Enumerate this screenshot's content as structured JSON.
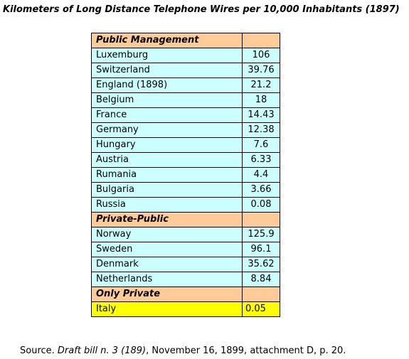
{
  "title": "Kilometers of Long Distance Telephone Wires per 10,000 Inhabitants (1897)",
  "table": {
    "sections": [
      {
        "header": "Public Management",
        "rows": [
          {
            "country": "Luxemburg",
            "value": "106"
          },
          {
            "country": "Switzerland",
            "value": "39.76"
          },
          {
            "country": "England (1898)",
            "value": "21.2"
          },
          {
            "country": "Belgium",
            "value": "18"
          },
          {
            "country": "France",
            "value": "14.43"
          },
          {
            "country": "Germany",
            "value": "12.38"
          },
          {
            "country": "Hungary",
            "value": "7.6"
          },
          {
            "country": "Austria",
            "value": "6.33"
          },
          {
            "country": "Rumania",
            "value": "4.4"
          },
          {
            "country": "Bulgaria",
            "value": "3.66"
          },
          {
            "country": "Russia",
            "value": "0.08"
          }
        ]
      },
      {
        "header": "Private-Public",
        "rows": [
          {
            "country": "Norway",
            "value": "125.9"
          },
          {
            "country": "Sweden",
            "value": "96.1"
          },
          {
            "country": "Denmark",
            "value": "35.62"
          },
          {
            "country": "Netherlands",
            "value": "8.84"
          }
        ]
      },
      {
        "header": "Only Private",
        "rows": [
          {
            "country": "Italy",
            "value": "0.05"
          }
        ]
      }
    ]
  },
  "source": {
    "prefix": "Source. ",
    "doc": "Draft bill n. 3 (189)",
    "suffix": ", November 16, 1899, attachment D, p. 20."
  },
  "colors": {
    "data_row": "#ccffff",
    "section_header": "#ffcc99",
    "highlight_row": "#ffff00"
  }
}
